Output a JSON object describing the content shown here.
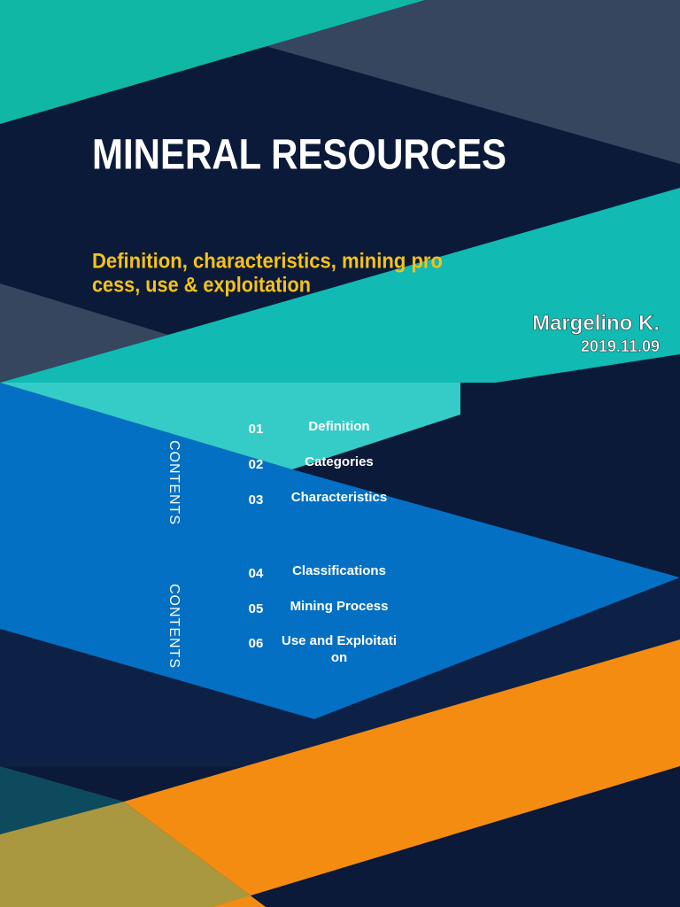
{
  "header": {
    "title": "MINERAL RESOURCES",
    "subtitle": [
      "Definition, characteristics, mining pro",
      "cess, use & exploitation"
    ],
    "author": "Margelino K.",
    "date": "2019.11.09"
  },
  "contents": {
    "labels": [
      "CONTENTS",
      "CONTENTS"
    ],
    "items": [
      {
        "number": "01",
        "label": [
          "Definition"
        ]
      },
      {
        "number": "02",
        "label": [
          "Categories"
        ]
      },
      {
        "number": "03",
        "label": [
          "Characteristics"
        ]
      },
      {
        "number": "04",
        "label": [
          "Classifications"
        ]
      },
      {
        "number": "05",
        "label": [
          "Mining Process"
        ]
      },
      {
        "number": "06",
        "label": [
          "Use and Exploitati",
          "on"
        ]
      }
    ]
  }
}
